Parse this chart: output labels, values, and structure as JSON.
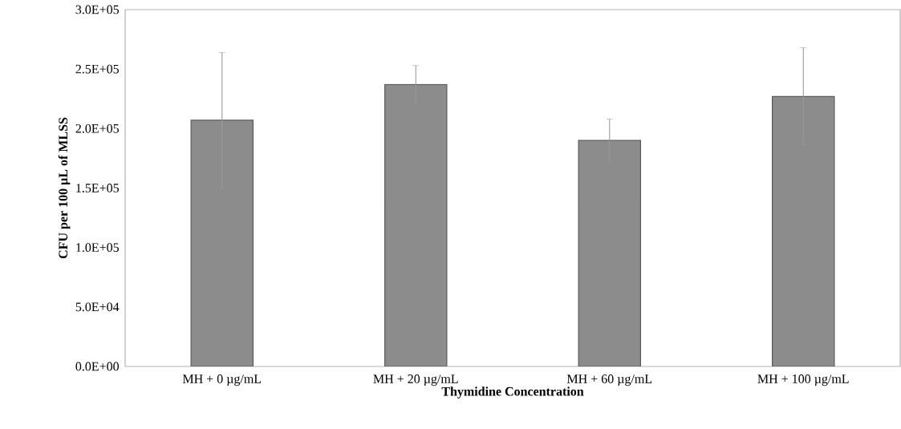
{
  "chart_data": {
    "type": "bar",
    "xlabel": "Thymidine Concentration",
    "ylabel": "CFU per 100 µL of MLSS",
    "categories": [
      "MH + 0 µg/mL",
      "MH + 20 µg/mL",
      "MH + 60 µg/mL",
      "MH + 100 µg/mL"
    ],
    "values": [
      207000,
      237000,
      190000,
      227000
    ],
    "errors": [
      57000,
      16000,
      18000,
      41000
    ],
    "color": "#8c8c8c",
    "ylim": [
      0,
      300000
    ],
    "yticks": [
      {
        "value": 0,
        "label": "0.0E+00"
      },
      {
        "value": 50000,
        "label": "5.0E+04"
      },
      {
        "value": 100000,
        "label": "1.0E+05"
      },
      {
        "value": 150000,
        "label": "1.5E+05"
      },
      {
        "value": 200000,
        "label": "2.0E+05"
      },
      {
        "value": 250000,
        "label": "2.5E+05"
      },
      {
        "value": 300000,
        "label": "3.0E+05"
      }
    ]
  }
}
